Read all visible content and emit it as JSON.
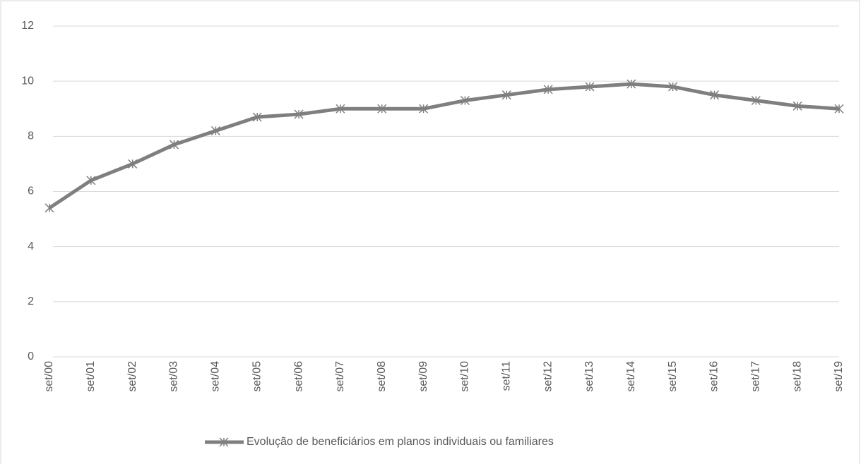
{
  "chart_data": {
    "type": "line",
    "categories": [
      "set/00",
      "set/01",
      "set/02",
      "set/03",
      "set/04",
      "set/05",
      "set/06",
      "set/07",
      "set/08",
      "set/09",
      "set/10",
      "set/11",
      "set/12",
      "set/13",
      "set/14",
      "set/15",
      "set/16",
      "set/17",
      "set/18",
      "set/19"
    ],
    "series": [
      {
        "name": "Evolução de beneficiários em planos individuais ou familiares",
        "color": "#7f7f7f",
        "values": [
          5.4,
          6.4,
          7.0,
          7.7,
          8.2,
          8.7,
          8.8,
          9.0,
          9.0,
          9.0,
          9.3,
          9.5,
          9.7,
          9.8,
          9.9,
          9.8,
          9.5,
          9.3,
          9.1,
          9.0
        ]
      }
    ],
    "ylim": [
      0,
      12
    ],
    "yticks": [
      0,
      2,
      4,
      6,
      8,
      10,
      12
    ],
    "grid": true,
    "legend": "bottom"
  }
}
